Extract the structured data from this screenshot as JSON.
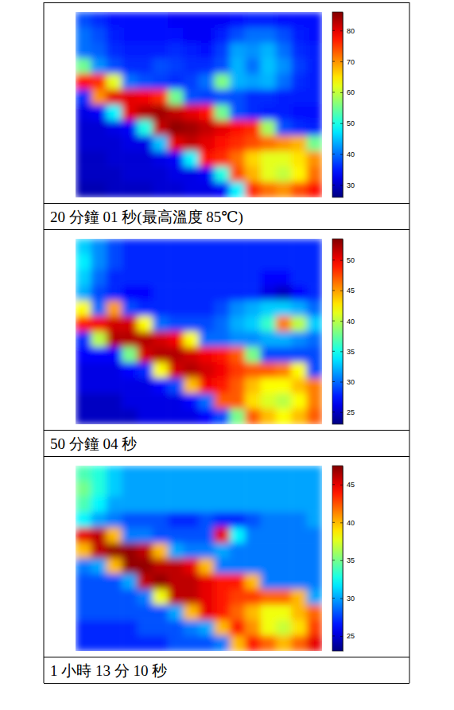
{
  "chart_data": [
    {
      "type": "heatmap",
      "title": "20 分鐘 01 秒(最高溫度 85℃)",
      "tick_labels": false,
      "colorbar_range": [
        26,
        86
      ],
      "colorbar_ticks": [
        30,
        40,
        50,
        60,
        70,
        80
      ],
      "cells": [
        [
          38,
          36,
          34,
          34,
          34,
          34,
          33,
          33,
          33,
          33,
          34,
          35,
          35,
          34,
          34,
          34
        ],
        [
          40,
          38,
          35,
          34,
          34,
          34,
          34,
          33,
          33,
          35,
          38,
          40,
          40,
          38,
          35,
          34
        ],
        [
          40,
          39,
          36,
          35,
          35,
          35,
          36,
          35,
          34,
          37,
          43,
          42,
          44,
          40,
          36,
          35
        ],
        [
          55,
          42,
          38,
          36,
          36,
          38,
          37,
          36,
          36,
          38,
          44,
          40,
          45,
          42,
          37,
          35
        ],
        [
          78,
          76,
          62,
          40,
          38,
          37,
          36,
          37,
          40,
          56,
          44,
          43,
          44,
          40,
          36,
          35
        ],
        [
          36,
          70,
          80,
          80,
          79,
          76,
          55,
          38,
          37,
          38,
          38,
          36,
          36,
          35,
          35,
          35
        ],
        [
          32,
          33,
          48,
          80,
          83,
          84,
          82,
          80,
          78,
          55,
          38,
          36,
          35,
          35,
          34,
          34
        ],
        [
          31,
          31,
          32,
          33,
          50,
          82,
          85,
          84,
          82,
          80,
          78,
          76,
          58,
          38,
          36,
          35
        ],
        [
          31,
          31,
          31,
          32,
          32,
          45,
          80,
          82,
          80,
          78,
          76,
          74,
          72,
          70,
          68,
          55
        ],
        [
          30,
          30,
          31,
          31,
          31,
          32,
          33,
          48,
          78,
          76,
          72,
          66,
          62,
          62,
          65,
          70
        ],
        [
          30,
          30,
          30,
          31,
          31,
          31,
          32,
          32,
          33,
          50,
          74,
          68,
          62,
          60,
          64,
          72
        ],
        [
          29,
          29,
          30,
          30,
          30,
          31,
          31,
          32,
          32,
          33,
          48,
          76,
          72,
          70,
          74,
          78
        ]
      ]
    },
    {
      "type": "heatmap",
      "title": "50 分鐘 04 秒",
      "tick_labels": false,
      "colorbar_range": [
        23,
        53.5
      ],
      "colorbar_ticks": [
        25,
        30,
        35,
        40,
        45,
        50
      ],
      "cells": [
        [
          33,
          31,
          29,
          28,
          28,
          28,
          28,
          28,
          28,
          28,
          28,
          28,
          28,
          28,
          28,
          28
        ],
        [
          34,
          31,
          29,
          28,
          28,
          28,
          28,
          28,
          28,
          28,
          28,
          28,
          28,
          28,
          28,
          28
        ],
        [
          33,
          30,
          28,
          28,
          28,
          28,
          28,
          28,
          28,
          28,
          28,
          28,
          27,
          27,
          28,
          28
        ],
        [
          32,
          29,
          28,
          27,
          27,
          28,
          28,
          28,
          28,
          28,
          28,
          28,
          26,
          25,
          27,
          28
        ],
        [
          42,
          30,
          45,
          29,
          28,
          28,
          28,
          28,
          28,
          29,
          31,
          32,
          33,
          33,
          32,
          30
        ],
        [
          49,
          50,
          51,
          51,
          42,
          30,
          29,
          29,
          29,
          30,
          32,
          33,
          36,
          46,
          40,
          33
        ],
        [
          28,
          40,
          52,
          52,
          52,
          51,
          50,
          42,
          30,
          30,
          31,
          31,
          32,
          32,
          31,
          30
        ],
        [
          27,
          27,
          27,
          38,
          51,
          52,
          52,
          51,
          50,
          49,
          47,
          38,
          29,
          29,
          29,
          29
        ],
        [
          26,
          26,
          26,
          27,
          28,
          42,
          51,
          52,
          51,
          50,
          48,
          47,
          47,
          46,
          42,
          29
        ],
        [
          26,
          26,
          26,
          26,
          26,
          27,
          29,
          44,
          50,
          49,
          47,
          44,
          42,
          42,
          44,
          46
        ],
        [
          25,
          25,
          25,
          26,
          26,
          26,
          26,
          27,
          30,
          47,
          47,
          43,
          41,
          40,
          42,
          46
        ],
        [
          25,
          25,
          25,
          25,
          26,
          26,
          26,
          26,
          27,
          29,
          38,
          47,
          44,
          42,
          44,
          47
        ]
      ]
    },
    {
      "type": "heatmap",
      "title": "1 小時 13 分 10 秒",
      "tick_labels": false,
      "colorbar_range": [
        23,
        47.5
      ],
      "colorbar_ticks": [
        25,
        30,
        35,
        40,
        45
      ],
      "cells": [
        [
          34,
          33,
          31,
          30,
          30,
          30,
          30,
          30,
          30,
          30,
          30,
          30,
          30,
          30,
          30,
          30
        ],
        [
          35,
          33,
          31,
          30,
          30,
          30,
          30,
          30,
          30,
          30,
          30,
          30,
          30,
          30,
          30,
          30
        ],
        [
          34,
          32,
          30,
          30,
          30,
          30,
          30,
          30,
          30,
          30,
          30,
          30,
          30,
          30,
          30,
          30
        ],
        [
          32,
          30,
          29,
          28,
          28,
          28,
          27,
          27,
          28,
          27,
          27,
          28,
          29,
          29,
          29,
          30
        ],
        [
          45,
          46,
          40,
          29,
          29,
          28,
          28,
          28,
          28,
          45,
          32,
          29,
          29,
          29,
          29,
          29
        ],
        [
          40,
          46,
          47,
          47,
          46,
          40,
          30,
          29,
          29,
          30,
          29,
          29,
          29,
          29,
          29,
          29
        ],
        [
          29,
          30,
          40,
          47,
          47,
          46,
          46,
          45,
          40,
          29,
          29,
          29,
          29,
          29,
          29,
          29
        ],
        [
          28,
          28,
          28,
          30,
          46,
          47,
          46,
          46,
          45,
          44,
          44,
          40,
          29,
          29,
          29,
          29
        ],
        [
          28,
          28,
          28,
          28,
          29,
          38,
          46,
          46,
          45,
          44,
          43,
          43,
          42,
          42,
          40,
          30
        ],
        [
          28,
          28,
          28,
          28,
          28,
          28,
          30,
          40,
          45,
          44,
          42,
          40,
          38,
          38,
          40,
          42
        ],
        [
          27,
          27,
          27,
          27,
          28,
          28,
          28,
          29,
          30,
          40,
          44,
          41,
          38,
          37,
          39,
          43
        ],
        [
          27,
          27,
          27,
          27,
          27,
          27,
          28,
          28,
          28,
          29,
          40,
          44,
          42,
          40,
          42,
          45
        ]
      ]
    }
  ]
}
